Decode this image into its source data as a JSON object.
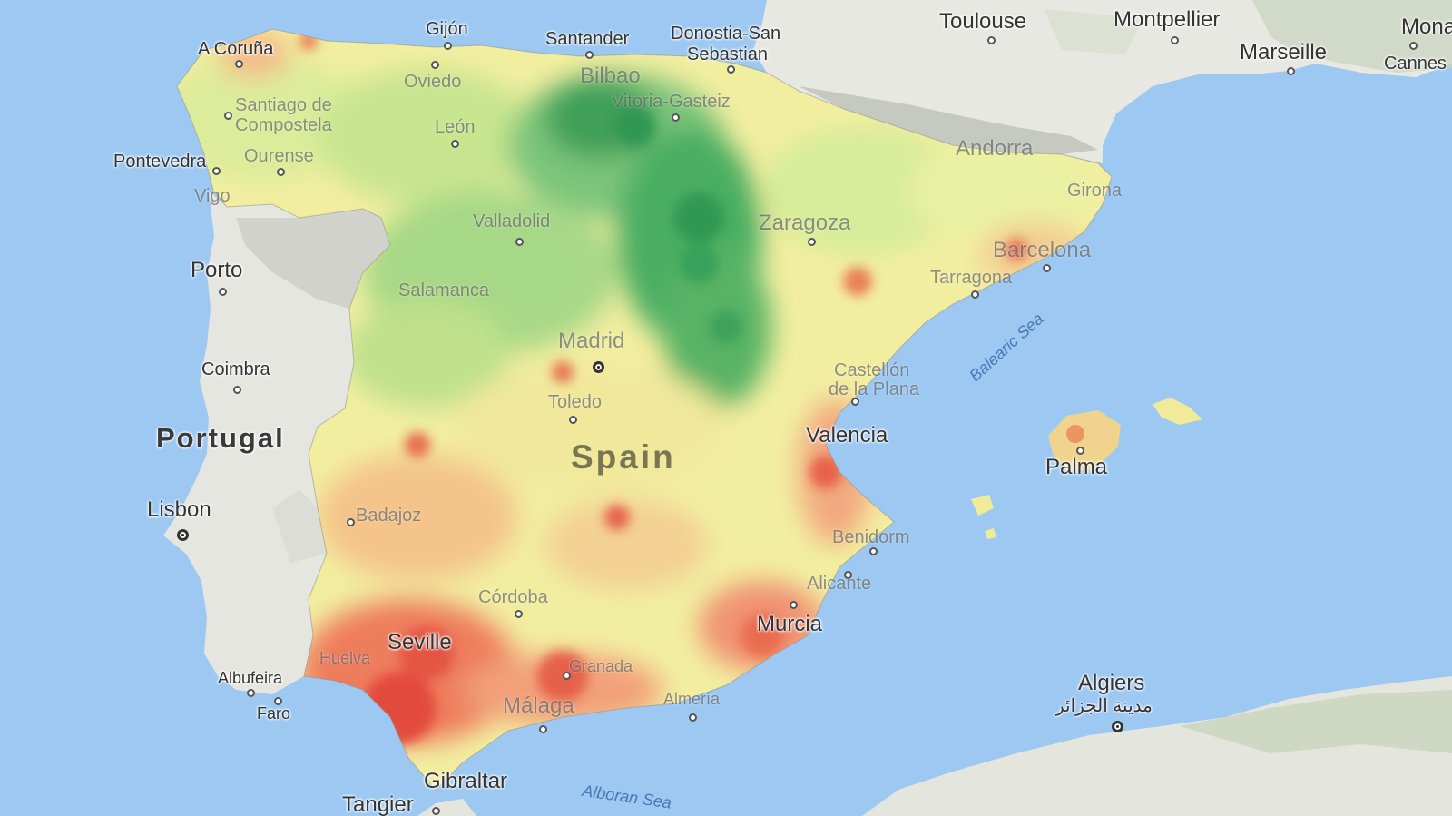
{
  "map": {
    "colors": {
      "sea": "#9cc8f2",
      "land": "#e6e6e0",
      "low": "#2e9a4e",
      "mid": "#f3f09c",
      "high": "#e2453a"
    },
    "countries": {
      "portugal": "Portugal",
      "spain": "Spain"
    },
    "seas": {
      "balearic": "Balearic Sea",
      "alboran": "Alboran Sea"
    },
    "cities": {
      "a_coruna": "A Coruña",
      "gijon": "Gijón",
      "santander": "Santander",
      "donostia": "Donostia-San",
      "donostia2": "Sebastian",
      "toulouse": "Toulouse",
      "montpellier": "Montpellier",
      "marseille": "Marseille",
      "monaco": "Mona",
      "cannes": "Cannes",
      "oviedo": "Oviedo",
      "bilbao": "Bilbao",
      "vitoria": "Vitoria-Gasteiz",
      "santiago": "Santiago de",
      "santiago2": "Compostela",
      "leon": "León",
      "ourense": "Ourense",
      "pontevedra": "Pontevedra",
      "vigo": "Vigo",
      "andorra": "Andorra",
      "girona": "Girona",
      "valladolid": "Valladolid",
      "zaragoza": "Zaragoza",
      "barcelona": "Barcelona",
      "tarragona": "Tarragona",
      "porto": "Porto",
      "salamanca": "Salamanca",
      "madrid": "Madrid",
      "coimbra": "Coimbra",
      "castellon": "Castellón",
      "castellon2": "de la Plana",
      "toledo": "Toledo",
      "valencia": "Valencia",
      "palma": "Palma",
      "lisbon": "Lisbon",
      "badajoz": "Badajoz",
      "benidorm": "Benidorm",
      "alicante": "Alicante",
      "cordoba": "Córdoba",
      "murcia": "Murcia",
      "seville": "Seville",
      "huelva": "Huelva",
      "granada": "Granada",
      "albufeira": "Albufeira",
      "faro": "Faro",
      "malaga": "Málaga",
      "almeria": "Almería",
      "algiers": "Algiers",
      "algiers_ar": "مدينة الجزائر",
      "gibraltar": "Gibraltar",
      "tangier": "Tangier"
    }
  }
}
